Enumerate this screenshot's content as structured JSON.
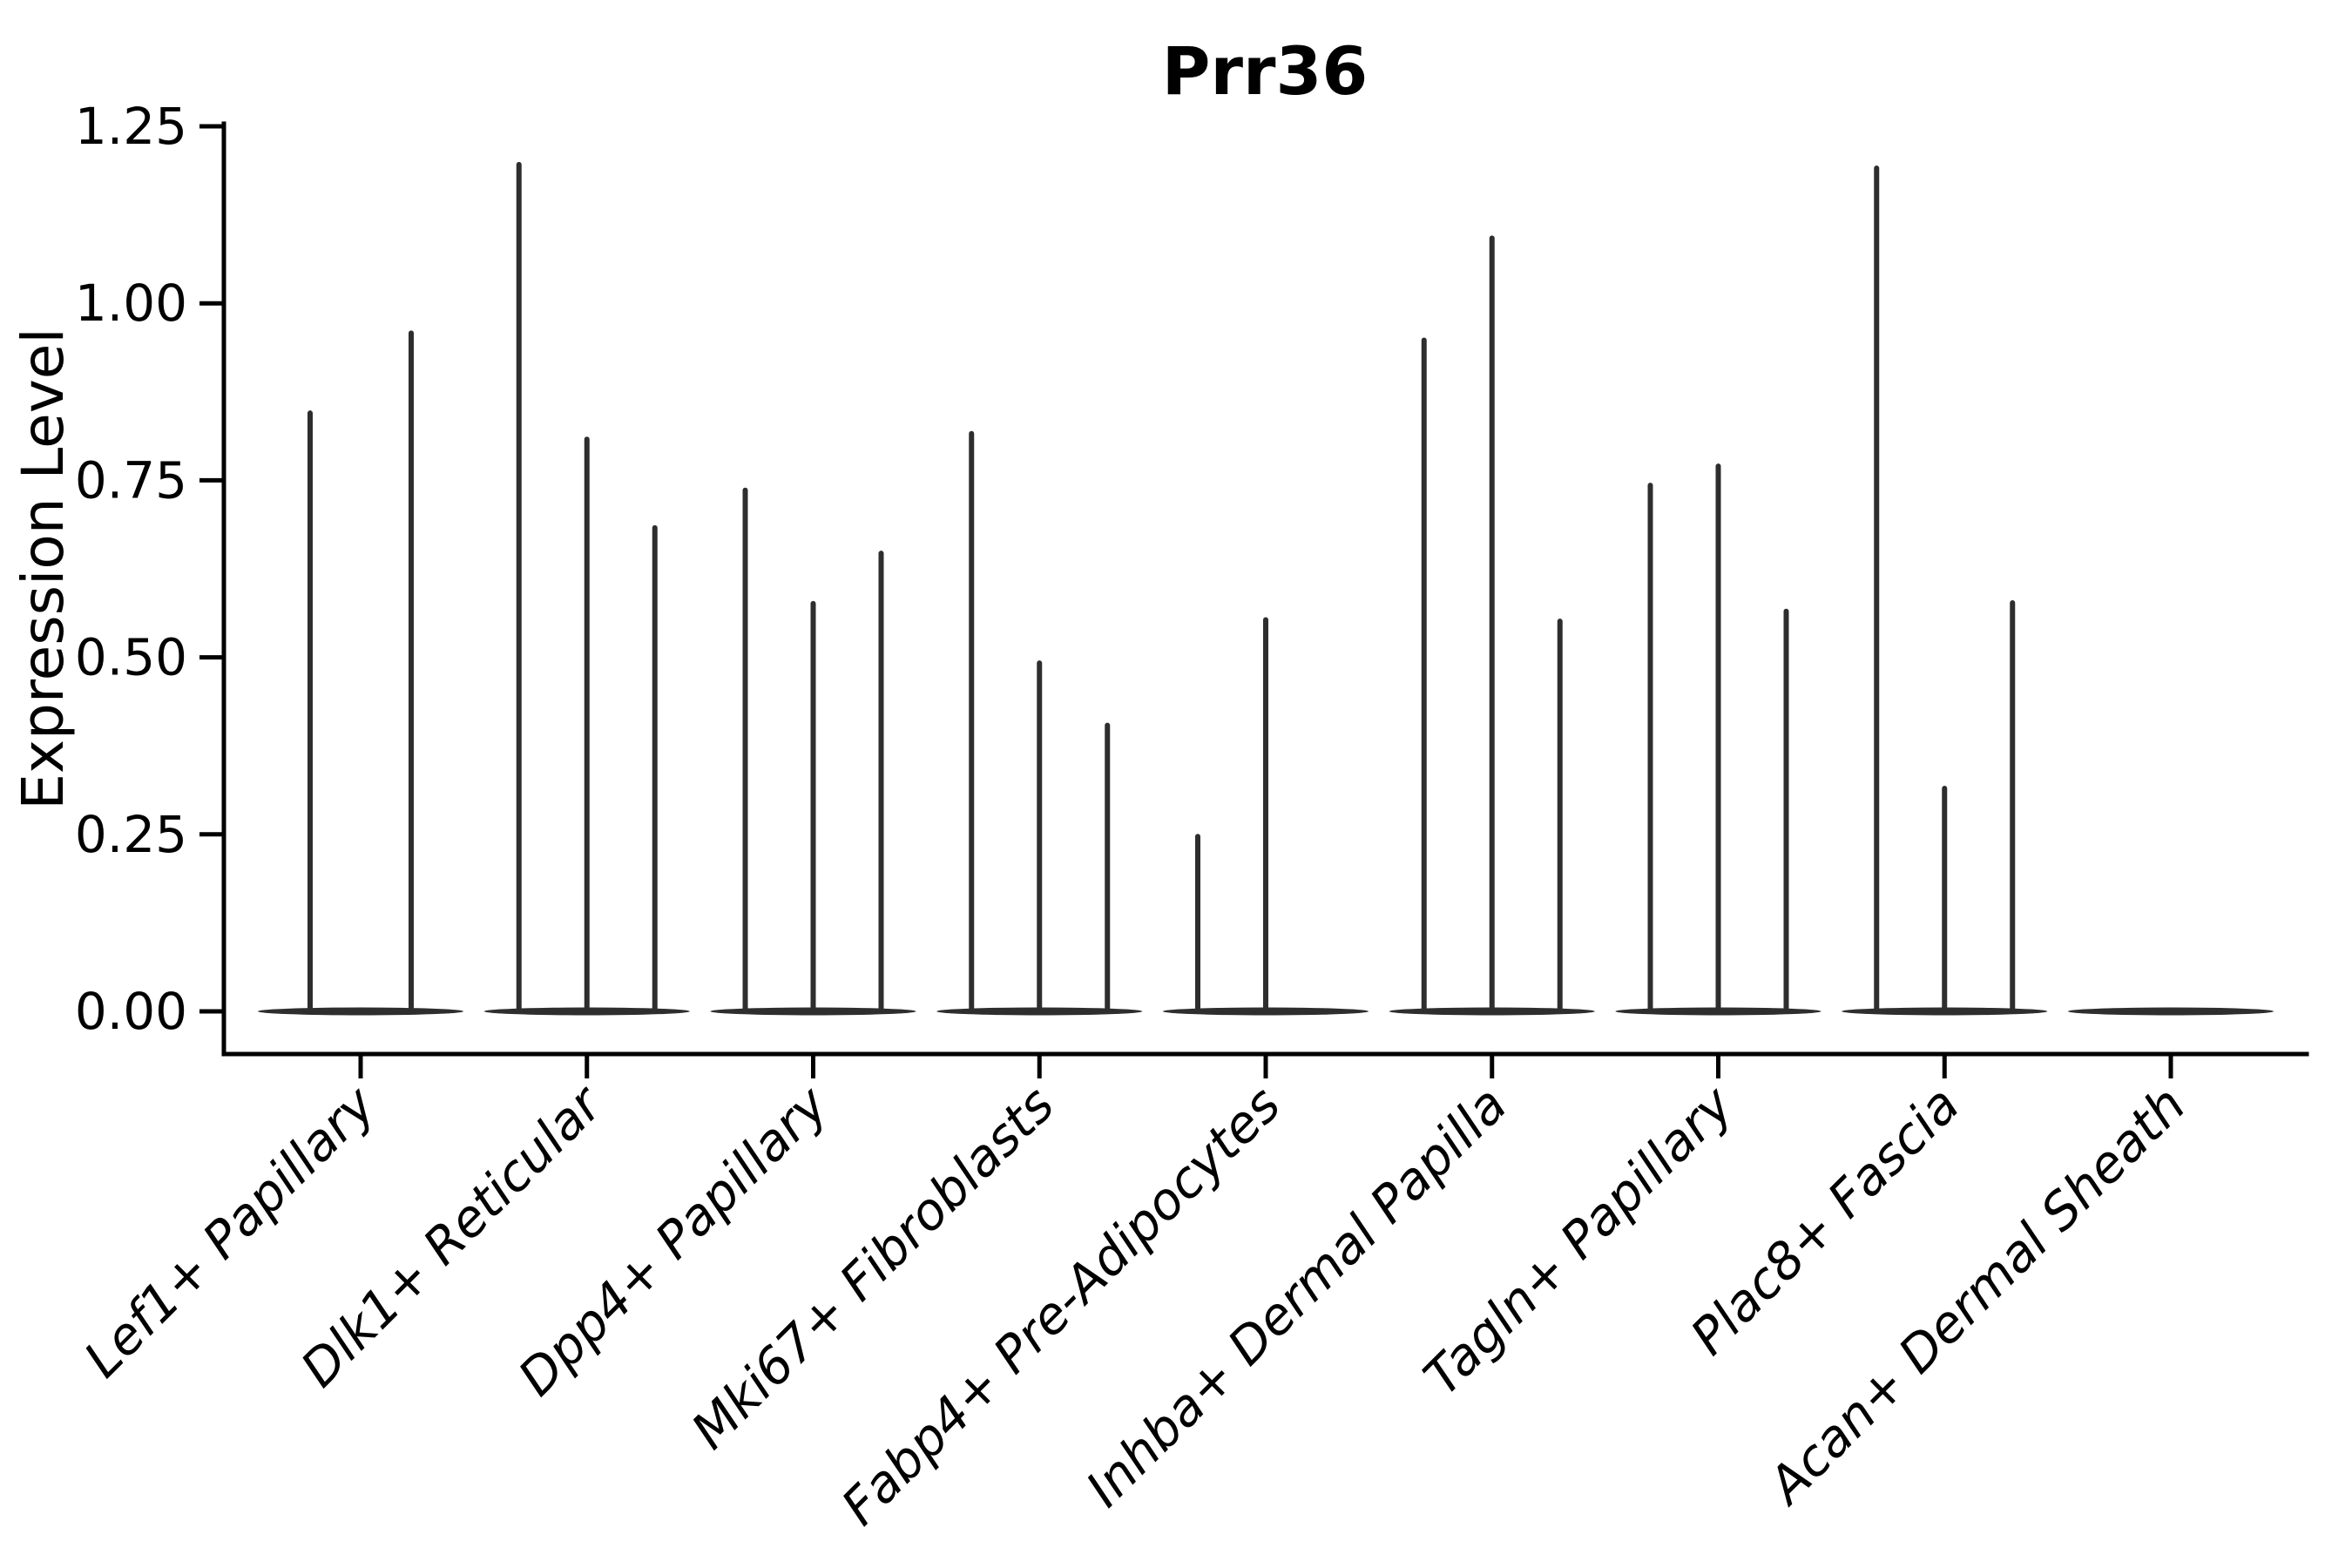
{
  "figure": {
    "background": "#ffffff",
    "ink_color": "#2e2e2e",
    "axis_color": "#000000"
  },
  "chart_data": {
    "type": "violin",
    "title": "Prr36",
    "xlabel": "",
    "ylabel": "Expression Level",
    "ylim": [
      0,
      1.25
    ],
    "grid": false,
    "legend": "none",
    "style": "needle violins: flat density base at 0 with thin spikes to max expression; spikes are dodged sub-violins per category",
    "yticks": [
      {
        "value": 0.0,
        "label": "0.00"
      },
      {
        "value": 0.25,
        "label": "0.25"
      },
      {
        "value": 0.5,
        "label": "0.50"
      },
      {
        "value": 0.75,
        "label": "0.75"
      },
      {
        "value": 1.0,
        "label": "1.00"
      },
      {
        "value": 1.25,
        "label": "1.25"
      }
    ],
    "categories": [
      "Lef1+ Papillary",
      "Dlk1+ Reticular",
      "Dpp4+ Papillary",
      "Mki67+ Fibroblasts",
      "Fabp4+ Pre-Adipocytes",
      "Inhba+ Dermal Papilla",
      "Tagln+ Papillary",
      "Plac8+ Fascia",
      "Acan+ Dermal Sheath"
    ],
    "violins": [
      {
        "category": "Lef1+ Papillary",
        "spikes": [
          {
            "dx": -58,
            "peak": 0.845
          },
          {
            "dx": 58,
            "peak": 0.958
          }
        ]
      },
      {
        "category": "Dlk1+ Reticular",
        "spikes": [
          {
            "dx": -78,
            "peak": 1.196
          },
          {
            "dx": 0,
            "peak": 0.808
          },
          {
            "dx": 78,
            "peak": 0.683
          }
        ]
      },
      {
        "category": "Dpp4+ Papillary",
        "spikes": [
          {
            "dx": -78,
            "peak": 0.736
          },
          {
            "dx": 0,
            "peak": 0.576
          },
          {
            "dx": 78,
            "peak": 0.647
          }
        ]
      },
      {
        "category": "Mki67+ Fibroblasts",
        "spikes": [
          {
            "dx": -78,
            "peak": 0.816
          },
          {
            "dx": 0,
            "peak": 0.492
          },
          {
            "dx": 78,
            "peak": 0.404
          }
        ]
      },
      {
        "category": "Fabp4+ Pre-Adipocytes",
        "spikes": [
          {
            "dx": -78,
            "peak": 0.247
          },
          {
            "dx": 0,
            "peak": 0.553
          }
        ]
      },
      {
        "category": "Inhba+ Dermal Papilla",
        "spikes": [
          {
            "dx": -78,
            "peak": 0.948
          },
          {
            "dx": 0,
            "peak": 1.092
          },
          {
            "dx": 78,
            "peak": 0.551
          }
        ]
      },
      {
        "category": "Tagln+ Papillary",
        "spikes": [
          {
            "dx": -78,
            "peak": 0.743
          },
          {
            "dx": 0,
            "peak": 0.77
          },
          {
            "dx": 78,
            "peak": 0.565
          }
        ]
      },
      {
        "category": "Plac8+ Fascia",
        "spikes": [
          {
            "dx": -78,
            "peak": 1.191
          },
          {
            "dx": 0,
            "peak": 0.315
          },
          {
            "dx": 78,
            "peak": 0.577
          }
        ]
      },
      {
        "category": "Acan+ Dermal Sheath",
        "spikes": []
      }
    ]
  }
}
